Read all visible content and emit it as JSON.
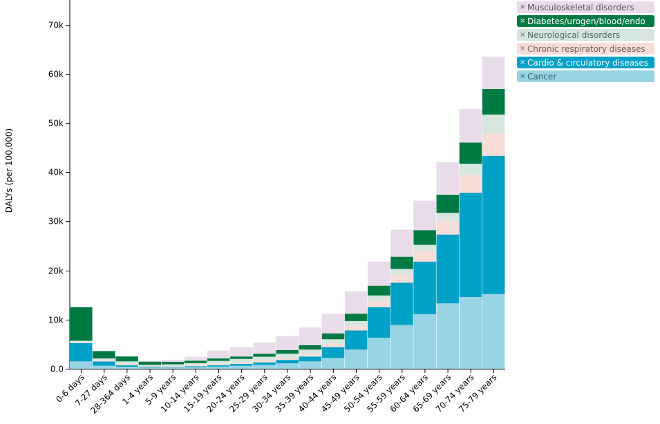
{
  "chart_data": {
    "type": "bar",
    "stacked": true,
    "ylabel": "DALYs (per 100,000)",
    "ylim": [
      0,
      75000
    ],
    "yticks": [
      {
        "value": 0,
        "label": "0.0"
      },
      {
        "value": 10000,
        "label": "10k"
      },
      {
        "value": 20000,
        "label": "20k"
      },
      {
        "value": 30000,
        "label": "30k"
      },
      {
        "value": 40000,
        "label": "40k"
      },
      {
        "value": 50000,
        "label": "50k"
      },
      {
        "value": 60000,
        "label": "60k"
      },
      {
        "value": 70000,
        "label": "70k"
      }
    ],
    "categories": [
      "0-6 days",
      "7-27 days",
      "28-364 days",
      "1-4 years",
      "5-9 years",
      "10-14 years",
      "15-19 years",
      "20-24 years",
      "25-29 years",
      "30-34 years",
      "35-39 years",
      "40-44 years",
      "45-49 years",
      "50-54 years",
      "55-59 years",
      "60-64 years",
      "65-69 years",
      "70-74 years",
      "75-79 years"
    ],
    "series": [
      {
        "name": "Cancer",
        "color": "#97d4e4",
        "text_color": "#3d5a66",
        "values": [
          1500,
          600,
          400,
          300,
          250,
          300,
          450,
          600,
          800,
          1100,
          1500,
          2200,
          3900,
          6300,
          8900,
          11100,
          13300,
          14600,
          15200
        ]
      },
      {
        "name": "Cardio & circulatory diseases",
        "color": "#00a1c6",
        "text_color": "#ffffff",
        "values": [
          3700,
          900,
          300,
          150,
          100,
          200,
          250,
          400,
          500,
          700,
          1000,
          2200,
          3900,
          6200,
          8600,
          10700,
          14000,
          21200,
          28100
        ]
      },
      {
        "name": "Chronic respiratory diseases",
        "color": "#f6ddd7",
        "text_color": "#7d5c55",
        "values": [
          200,
          300,
          400,
          150,
          150,
          200,
          300,
          300,
          350,
          450,
          550,
          700,
          900,
          1300,
          1700,
          2100,
          2800,
          3700,
          4600
        ]
      },
      {
        "name": "Neurological disorders",
        "color": "#d6e6df",
        "text_color": "#55695f",
        "values": [
          300,
          300,
          400,
          200,
          400,
          450,
          600,
          700,
          800,
          800,
          850,
          900,
          1000,
          1100,
          1100,
          1300,
          1600,
          2200,
          3800
        ]
      },
      {
        "name": "Diabetes/urogen/blood/endo",
        "color": "#007a43",
        "text_color": "#ffffff",
        "values": [
          6800,
          1500,
          1000,
          650,
          500,
          500,
          500,
          500,
          600,
          750,
          900,
          1200,
          1500,
          2000,
          2500,
          3000,
          3700,
          4300,
          5200
        ]
      },
      {
        "name": "Musculoskeletal disorders",
        "color": "#e9dcea",
        "text_color": "#5b4f5c",
        "values": [
          0,
          0,
          0,
          0,
          400,
          800,
          1600,
          1900,
          2300,
          2800,
          3600,
          4000,
          4500,
          4900,
          5500,
          6000,
          6600,
          6800,
          6600
        ]
      }
    ]
  }
}
